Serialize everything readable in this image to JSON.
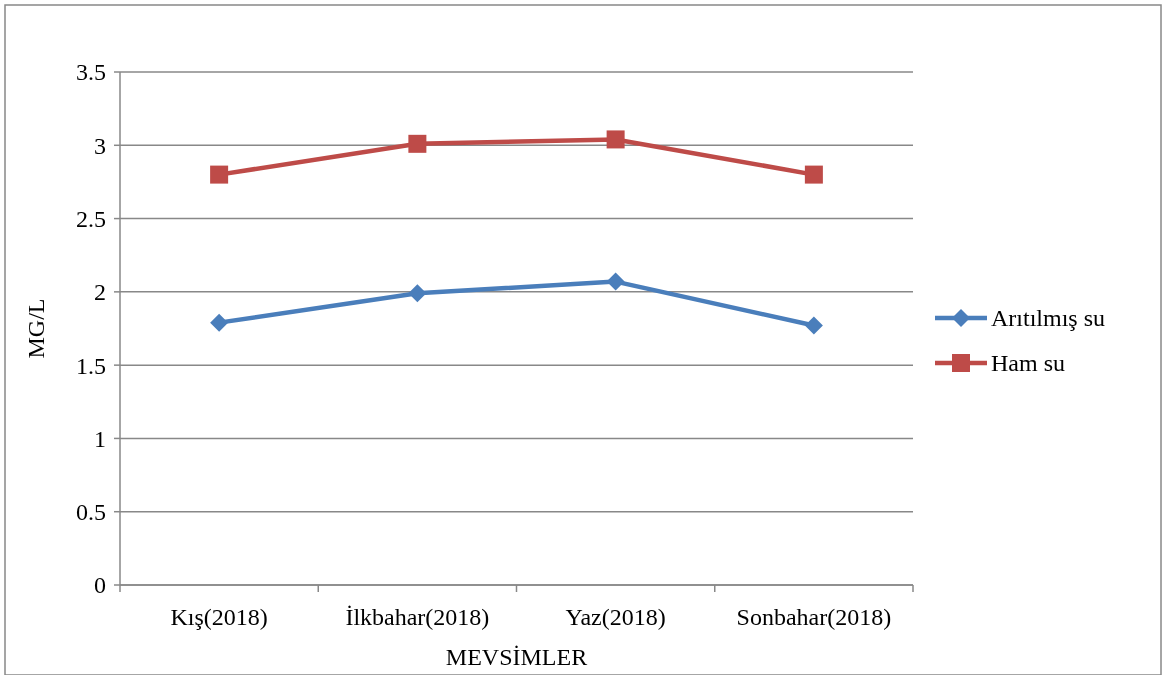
{
  "chart_data": {
    "type": "line",
    "xlabel": "MEVSİMLER",
    "ylabel": "MG/L",
    "categories": [
      "Kış(2018)",
      "İlkbahar(2018)",
      "Yaz(2018)",
      "Sonbahar(2018)"
    ],
    "series": [
      {
        "name": "Arıtılmış su",
        "color": "#4a7ebb",
        "marker": "diamond",
        "values": [
          1.79,
          1.99,
          2.07,
          1.77
        ]
      },
      {
        "name": "Ham su",
        "color": "#be4b48",
        "marker": "square",
        "values": [
          2.8,
          3.01,
          3.04,
          2.8
        ]
      }
    ],
    "ylim": [
      0,
      3.5
    ],
    "yticks": [
      0,
      {
        "value": 0.5,
        "label": "0.5"
      },
      1,
      {
        "value": 1.5,
        "label": "1.5"
      },
      2,
      {
        "value": 2.5,
        "label": "2.5"
      },
      3,
      {
        "value": 3.5,
        "label": "3.5"
      }
    ],
    "grid": "y",
    "legend": "right",
    "line_style": "solid"
  }
}
